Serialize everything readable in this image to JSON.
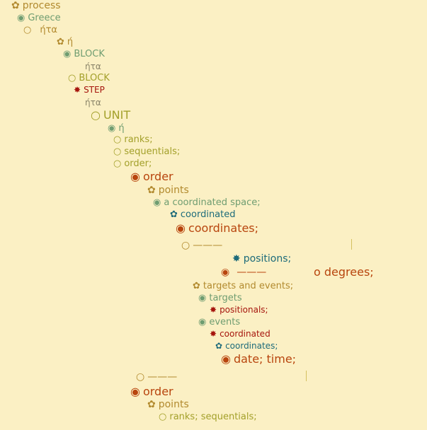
{
  "nodes": [
    {
      "glyph": "✿",
      "label": "process"
    },
    {
      "glyph": "◉",
      "label": "Greece"
    },
    {
      "glyph": "○",
      "label": "ήτα"
    },
    {
      "glyph": "✿",
      "label": "ή"
    },
    {
      "glyph": "◉",
      "label": "BLOCK"
    },
    {
      "glyph": "",
      "label": "ήτα"
    },
    {
      "glyph": "○",
      "label": "BLOCK"
    },
    {
      "glyph": "✸",
      "label": "STEP"
    },
    {
      "glyph": "",
      "label": "ήτα"
    },
    {
      "glyph": "○",
      "label": "UNIT"
    },
    {
      "glyph": "◉",
      "label": "ή"
    },
    {
      "glyph": "○",
      "label": "ranks;"
    },
    {
      "glyph": "○",
      "label": "sequentials;"
    },
    {
      "glyph": "○",
      "label": "order;"
    },
    {
      "glyph": "◉",
      "label": "order"
    },
    {
      "glyph": "✿",
      "label": "points"
    },
    {
      "glyph": "◉",
      "label": "a coordinated space;"
    },
    {
      "glyph": "✿",
      "label": "coordinated"
    },
    {
      "glyph": "◉",
      "label": "coordinates;"
    },
    {
      "glyph": "○",
      "label": "———"
    },
    {
      "glyph": "✸",
      "label": "positions;"
    },
    {
      "glyph": "◉",
      "label": "———"
    },
    {
      "glyph": "",
      "label": "o degrees;"
    },
    {
      "glyph": "✿",
      "label": "targets and events;"
    },
    {
      "glyph": "◉",
      "label": "targets"
    },
    {
      "glyph": "✸",
      "label": "positionals;"
    },
    {
      "glyph": "◉",
      "label": "events"
    },
    {
      "glyph": "✸",
      "label": "coordinated"
    },
    {
      "glyph": "✿",
      "label": "coordinates;"
    },
    {
      "glyph": "◉",
      "label": "date; time;"
    },
    {
      "glyph": "○",
      "label": "———"
    },
    {
      "glyph": "◉",
      "label": "order"
    },
    {
      "glyph": "✿",
      "label": "points"
    },
    {
      "glyph": "○",
      "label": "ranks; sequentials;"
    }
  ]
}
